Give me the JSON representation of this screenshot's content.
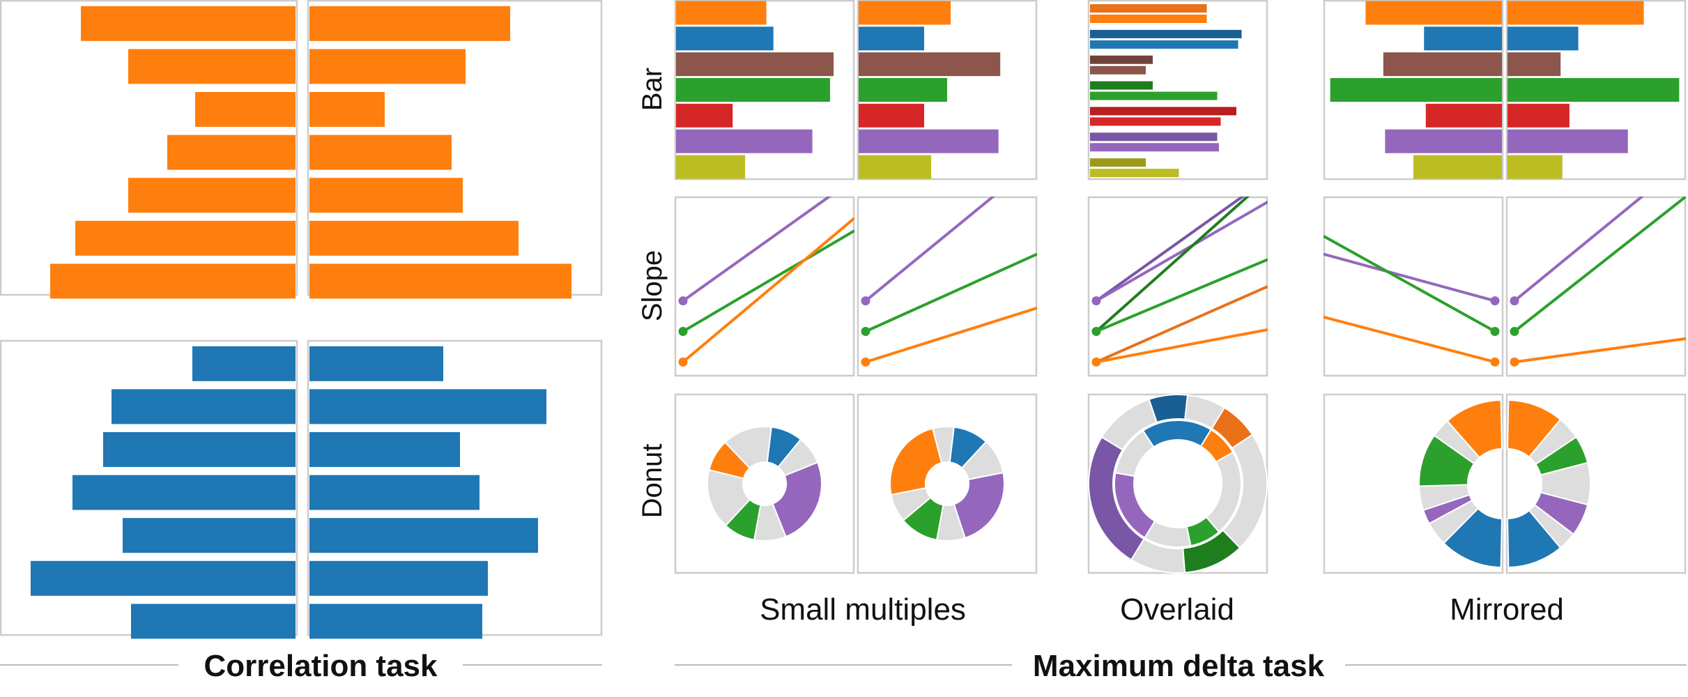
{
  "colors": {
    "orange": "#FF7F0E",
    "blue": "#1F77B4",
    "brown": "#8C564B",
    "green": "#2CA02C",
    "red": "#D62728",
    "purple": "#9467BD",
    "olive": "#BCBD22",
    "gray": "#DDDDDD",
    "dark_orange": "#E8711A",
    "dark_blue": "#1A5F94",
    "dark_green": "#1E7E1E",
    "dark_purple": "#7A56A6",
    "dark_olive": "#9A9B1B",
    "dark_red": "#B81F1F",
    "dark_brown": "#6F4339",
    "frame": "#CCCCCC"
  },
  "labels": {
    "correlation_task": "Correlation task",
    "maximum_delta_task": "Maximum delta task",
    "row_bar": "Bar",
    "row_slope": "Slope",
    "row_donut": "Donut",
    "col_small_multiples": "Small multiples",
    "col_overlaid": "Overlaid",
    "col_mirrored": "Mirrored"
  },
  "chart_data": [
    {
      "type": "bar",
      "task": "Correlation task",
      "layout": "mirrored",
      "color": "orange",
      "left_values": [
        0.77,
        0.6,
        0.36,
        0.46,
        0.6,
        0.79,
        0.88
      ],
      "right_values": [
        0.72,
        0.56,
        0.27,
        0.51,
        0.55,
        0.75,
        0.94
      ]
    },
    {
      "type": "bar",
      "task": "Correlation task",
      "layout": "mirrored",
      "color": "blue",
      "left_values": [
        0.37,
        0.66,
        0.69,
        0.8,
        0.62,
        0.95,
        0.59
      ],
      "right_values": [
        0.48,
        0.85,
        0.54,
        0.61,
        0.82,
        0.64,
        0.62
      ]
    },
    {
      "type": "bar",
      "task": "Maximum delta task",
      "encoding": "Bar",
      "layout": "Small multiples",
      "colors": [
        "orange",
        "blue",
        "brown",
        "green",
        "red",
        "purple",
        "olive"
      ],
      "left_values": [
        0.51,
        0.55,
        0.89,
        0.87,
        0.32,
        0.77,
        0.39
      ],
      "right_values": [
        0.52,
        0.37,
        0.8,
        0.5,
        0.37,
        0.79,
        0.41
      ]
    },
    {
      "type": "bar",
      "task": "Maximum delta task",
      "encoding": "Bar",
      "layout": "Overlaid",
      "colors": [
        "orange",
        "blue",
        "brown",
        "green",
        "red",
        "purple",
        "olive"
      ],
      "left_values": [
        0.67,
        0.87,
        0.36,
        0.36,
        0.84,
        0.73,
        0.32
      ],
      "right_values": [
        0.67,
        0.85,
        0.32,
        0.73,
        0.75,
        0.74,
        0.51
      ]
    },
    {
      "type": "bar",
      "task": "Maximum delta task",
      "encoding": "Bar",
      "layout": "Mirrored",
      "colors": [
        "orange",
        "blue",
        "brown",
        "green",
        "red",
        "purple",
        "olive"
      ],
      "left_values": [
        0.77,
        0.44,
        0.67,
        0.97,
        0.43,
        0.66,
        0.5
      ],
      "right_values": [
        0.77,
        0.4,
        0.3,
        0.97,
        0.35,
        0.68,
        0.31
      ]
    },
    {
      "type": "line",
      "task": "Maximum delta task",
      "encoding": "Slope",
      "layout": "Small multiples",
      "series_colors": [
        "purple",
        "green",
        "orange"
      ],
      "start": [
        0.42,
        0.25,
        0.08
      ],
      "end_left": [
        1.1,
        0.81,
        0.88
      ],
      "end_right": [
        1.2,
        0.68,
        0.38
      ]
    },
    {
      "type": "line",
      "task": "Maximum delta task",
      "encoding": "Slope",
      "layout": "Overlaid",
      "series_colors": [
        "purple",
        "green",
        "orange"
      ],
      "start": [
        0.42,
        0.25,
        0.08
      ],
      "end_left": [
        1.1,
        1.1,
        0.5
      ],
      "end_right": [
        0.97,
        0.65,
        0.26
      ]
    },
    {
      "type": "line",
      "task": "Maximum delta task",
      "encoding": "Slope",
      "layout": "Mirrored",
      "series_colors": [
        "purple",
        "green",
        "orange"
      ],
      "start": [
        0.42,
        0.25,
        0.08
      ],
      "end_left": [
        0.68,
        0.78,
        0.33
      ],
      "end_right": [
        1.2,
        1.0,
        0.21
      ]
    },
    {
      "type": "pie",
      "task": "Maximum delta task",
      "encoding": "Donut",
      "layout": "Small multiples",
      "left_slices": [
        {
          "color": "blue",
          "value": 9
        },
        {
          "color": "gray",
          "value": 8
        },
        {
          "color": "purple",
          "value": 25
        },
        {
          "color": "gray",
          "value": 9
        },
        {
          "color": "green",
          "value": 9
        },
        {
          "color": "gray",
          "value": 17
        },
        {
          "color": "orange",
          "value": 9
        },
        {
          "color": "gray",
          "value": 14
        }
      ],
      "right_slices": [
        {
          "color": "blue",
          "value": 10
        },
        {
          "color": "gray",
          "value": 10
        },
        {
          "color": "purple",
          "value": 23
        },
        {
          "color": "gray",
          "value": 8
        },
        {
          "color": "green",
          "value": 11
        },
        {
          "color": "gray",
          "value": 8
        },
        {
          "color": "orange",
          "value": 24
        },
        {
          "color": "gray",
          "value": 6
        }
      ]
    },
    {
      "type": "pie",
      "task": "Maximum delta task",
      "encoding": "Donut",
      "layout": "Overlaid",
      "outer_slices": [
        {
          "color": "dark_orange",
          "value": 7
        },
        {
          "color": "gray",
          "value": 22
        },
        {
          "color": "dark_green",
          "value": 11
        },
        {
          "color": "gray",
          "value": 10
        },
        {
          "color": "dark_purple",
          "value": 25
        },
        {
          "color": "gray",
          "value": 11
        },
        {
          "color": "dark_blue",
          "value": 7
        },
        {
          "color": "gray",
          "value": 7
        }
      ],
      "inner_slices": [
        {
          "color": "orange",
          "value": 8
        },
        {
          "color": "gray",
          "value": 22
        },
        {
          "color": "green",
          "value": 8
        },
        {
          "color": "gray",
          "value": 12
        },
        {
          "color": "purple",
          "value": 19
        },
        {
          "color": "gray",
          "value": 13
        },
        {
          "color": "blue",
          "value": 18
        }
      ]
    },
    {
      "type": "pie",
      "task": "Maximum delta task",
      "encoding": "Donut",
      "layout": "Mirrored",
      "right_slices": [
        {
          "color": "orange",
          "value": 24
        },
        {
          "color": "gray",
          "value": 10
        },
        {
          "color": "green",
          "value": 12
        },
        {
          "color": "gray",
          "value": 18
        },
        {
          "color": "purple",
          "value": 14
        },
        {
          "color": "gray",
          "value": 8
        },
        {
          "color": "blue",
          "value": 24
        }
      ],
      "left_slices": [
        {
          "color": "orange",
          "value": 24
        },
        {
          "color": "gray",
          "value": 8
        },
        {
          "color": "green",
          "value": 22
        },
        {
          "color": "gray",
          "value": 10
        },
        {
          "color": "purple",
          "value": 6
        },
        {
          "color": "gray",
          "value": 10
        },
        {
          "color": "blue",
          "value": 26
        }
      ]
    }
  ]
}
